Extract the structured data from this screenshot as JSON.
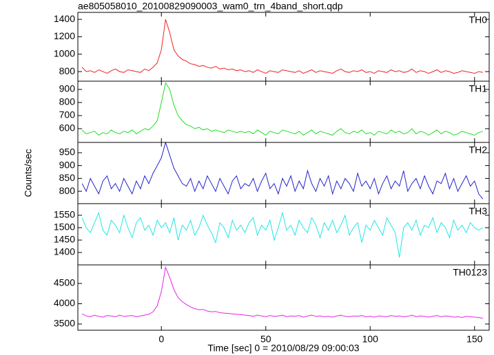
{
  "chart_data": [
    {
      "type": "line",
      "title": "ae805058010_20100829090003_wam0_trn_4band_short.qdp",
      "x": [
        -38,
        -36,
        -34,
        -32,
        -30,
        -28,
        -26,
        -24,
        -22,
        -20,
        -18,
        -16,
        -14,
        -12,
        -10,
        -8,
        -6,
        -4,
        -2,
        0,
        2,
        4,
        6,
        8,
        10,
        12,
        14,
        16,
        18,
        20,
        22,
        24,
        26,
        28,
        30,
        32,
        34,
        36,
        38,
        40,
        42,
        44,
        46,
        48,
        50,
        52,
        54,
        56,
        58,
        60,
        62,
        64,
        66,
        68,
        70,
        72,
        74,
        76,
        78,
        80,
        82,
        84,
        86,
        88,
        90,
        92,
        94,
        96,
        98,
        100,
        102,
        104,
        106,
        108,
        110,
        112,
        114,
        116,
        118,
        120,
        122,
        124,
        126,
        128,
        130,
        132,
        134,
        136,
        138,
        140,
        142,
        144,
        146,
        148,
        150,
        152,
        154
      ],
      "series": [
        {
          "name": "TH0",
          "color": "#ee2222",
          "values": [
            850,
            800,
            810,
            790,
            820,
            800,
            780,
            810,
            830,
            800,
            790,
            820,
            810,
            800,
            790,
            830,
            810,
            850,
            900,
            1050,
            1400,
            1250,
            1050,
            980,
            940,
            920,
            890,
            880,
            860,
            870,
            850,
            840,
            860,
            830,
            840,
            820,
            830,
            810,
            820,
            800,
            810,
            790,
            820,
            800,
            780,
            810,
            800,
            790,
            820,
            810,
            800,
            790,
            810,
            780,
            800,
            820,
            790,
            810,
            800,
            790,
            780,
            810,
            830,
            800,
            790,
            810,
            800,
            820,
            790,
            800,
            780,
            810,
            800,
            790,
            820,
            800,
            810,
            790,
            800,
            830,
            790,
            810,
            800,
            780,
            800,
            820,
            790,
            810,
            800,
            780,
            790,
            810,
            800,
            790,
            780,
            800,
            790
          ]
        }
      ],
      "xlim": [
        -40,
        157
      ],
      "ylim": [
        690,
        1480
      ],
      "yticks": [
        800,
        1000,
        1200,
        1400
      ]
    },
    {
      "type": "line",
      "x": [
        -38,
        -36,
        -34,
        -32,
        -30,
        -28,
        -26,
        -24,
        -22,
        -20,
        -18,
        -16,
        -14,
        -12,
        -10,
        -8,
        -6,
        -4,
        -2,
        0,
        2,
        4,
        6,
        8,
        10,
        12,
        14,
        16,
        18,
        20,
        22,
        24,
        26,
        28,
        30,
        32,
        34,
        36,
        38,
        40,
        42,
        44,
        46,
        48,
        50,
        52,
        54,
        56,
        58,
        60,
        62,
        64,
        66,
        68,
        70,
        72,
        74,
        76,
        78,
        80,
        82,
        84,
        86,
        88,
        90,
        92,
        94,
        96,
        98,
        100,
        102,
        104,
        106,
        108,
        110,
        112,
        114,
        116,
        118,
        120,
        122,
        124,
        126,
        128,
        130,
        132,
        134,
        136,
        138,
        140,
        142,
        144,
        146,
        148,
        150,
        152,
        154
      ],
      "series": [
        {
          "name": "TH1",
          "color": "#22dd22",
          "values": [
            590,
            560,
            570,
            580,
            550,
            570,
            560,
            590,
            570,
            560,
            580,
            570,
            590,
            560,
            580,
            600,
            590,
            620,
            660,
            800,
            950,
            900,
            780,
            700,
            660,
            630,
            620,
            600,
            610,
            590,
            600,
            580,
            590,
            580,
            570,
            590,
            580,
            570,
            580,
            570,
            580,
            560,
            590,
            570,
            550,
            580,
            570,
            560,
            590,
            580,
            570,
            560,
            580,
            550,
            570,
            590,
            560,
            580,
            570,
            560,
            550,
            580,
            600,
            570,
            560,
            580,
            570,
            590,
            560,
            570,
            550,
            580,
            570,
            560,
            590,
            570,
            580,
            560,
            570,
            600,
            560,
            580,
            570,
            550,
            570,
            590,
            560,
            580,
            570,
            550,
            560,
            580,
            570,
            560,
            550,
            570,
            580
          ]
        }
      ],
      "xlim": [
        -40,
        157
      ],
      "ylim": [
        495,
        963
      ],
      "yticks": [
        600,
        700,
        800,
        900
      ]
    },
    {
      "type": "line",
      "ylabel": "Counts/sec",
      "x": [
        -38,
        -36,
        -34,
        -32,
        -30,
        -28,
        -26,
        -24,
        -22,
        -20,
        -18,
        -16,
        -14,
        -12,
        -10,
        -8,
        -6,
        -4,
        -2,
        0,
        2,
        4,
        6,
        8,
        10,
        12,
        14,
        16,
        18,
        20,
        22,
        24,
        26,
        28,
        30,
        32,
        34,
        36,
        38,
        40,
        42,
        44,
        46,
        48,
        50,
        52,
        54,
        56,
        58,
        60,
        62,
        64,
        66,
        68,
        70,
        72,
        74,
        76,
        78,
        80,
        82,
        84,
        86,
        88,
        90,
        92,
        94,
        96,
        98,
        100,
        102,
        104,
        106,
        108,
        110,
        112,
        114,
        116,
        118,
        120,
        122,
        124,
        126,
        128,
        130,
        132,
        134,
        136,
        138,
        140,
        142,
        144,
        146,
        148,
        150,
        152,
        154
      ],
      "series": [
        {
          "name": "TH2",
          "color": "#2222cc",
          "values": [
            830,
            800,
            850,
            820,
            790,
            840,
            860,
            810,
            830,
            800,
            850,
            820,
            790,
            840,
            810,
            860,
            830,
            870,
            900,
            930,
            990,
            940,
            890,
            860,
            830,
            820,
            850,
            800,
            840,
            810,
            860,
            830,
            800,
            850,
            820,
            790,
            840,
            860,
            810,
            830,
            820,
            850,
            800,
            840,
            870,
            810,
            830,
            790,
            850,
            820,
            860,
            800,
            840,
            810,
            880,
            830,
            800,
            850,
            820,
            860,
            790,
            840,
            810,
            850,
            830,
            800,
            870,
            820,
            840,
            810,
            850,
            790,
            830,
            860,
            810,
            840,
            820,
            880,
            800,
            830,
            850,
            810,
            860,
            820,
            790,
            840,
            830,
            870,
            810,
            850,
            800,
            830,
            860,
            820,
            840,
            790,
            770
          ]
        }
      ],
      "xlim": [
        -40,
        157
      ],
      "ylim": [
        752,
        990
      ],
      "yticks": [
        800,
        850,
        900,
        950
      ]
    },
    {
      "type": "line",
      "x": [
        -38,
        -36,
        -34,
        -32,
        -30,
        -28,
        -26,
        -24,
        -22,
        -20,
        -18,
        -16,
        -14,
        -12,
        -10,
        -8,
        -6,
        -4,
        -2,
        0,
        2,
        4,
        6,
        8,
        10,
        12,
        14,
        16,
        18,
        20,
        22,
        24,
        26,
        28,
        30,
        32,
        34,
        36,
        38,
        40,
        42,
        44,
        46,
        48,
        50,
        52,
        54,
        56,
        58,
        60,
        62,
        64,
        66,
        68,
        70,
        72,
        74,
        76,
        78,
        80,
        82,
        84,
        86,
        88,
        90,
        92,
        94,
        96,
        98,
        100,
        102,
        104,
        106,
        108,
        110,
        112,
        114,
        116,
        118,
        120,
        122,
        124,
        126,
        128,
        130,
        132,
        134,
        136,
        138,
        140,
        142,
        144,
        146,
        148,
        150,
        152,
        154
      ],
      "series": [
        {
          "name": "TH3",
          "color": "#22e6e6",
          "values": [
            1540,
            1500,
            1480,
            1520,
            1560,
            1490,
            1470,
            1530,
            1510,
            1480,
            1550,
            1500,
            1460,
            1520,
            1540,
            1490,
            1510,
            1470,
            1530,
            1500,
            1520,
            1480,
            1540,
            1450,
            1510,
            1490,
            1530,
            1470,
            1500,
            1550,
            1510,
            1480,
            1440,
            1520,
            1500,
            1460,
            1530,
            1490,
            1510,
            1480,
            1520,
            1540,
            1470,
            1510,
            1490,
            1530,
            1450,
            1500,
            1560,
            1490,
            1510,
            1470,
            1530,
            1500,
            1480,
            1540,
            1510,
            1460,
            1520,
            1490,
            1530,
            1480,
            1510,
            1550,
            1470,
            1500,
            1520,
            1440,
            1510,
            1490,
            1530,
            1500,
            1470,
            1540,
            1510,
            1480,
            1380,
            1500,
            1520,
            1490,
            1530,
            1470,
            1510,
            1500,
            1540,
            1480,
            1520,
            1500,
            1460,
            1530,
            1490,
            1510,
            1480,
            1520,
            1500,
            1490,
            1500
          ]
        }
      ],
      "xlim": [
        -40,
        157
      ],
      "ylim": [
        1350,
        1597
      ],
      "yticks": [
        1400,
        1450,
        1500,
        1550
      ]
    },
    {
      "type": "line",
      "xlabel": "Time [sec] 0 = 2010/08/29 09:00:03",
      "x": [
        -38,
        -36,
        -34,
        -32,
        -30,
        -28,
        -26,
        -24,
        -22,
        -20,
        -18,
        -16,
        -14,
        -12,
        -10,
        -8,
        -6,
        -4,
        -2,
        0,
        2,
        4,
        6,
        8,
        10,
        12,
        14,
        16,
        18,
        20,
        22,
        24,
        26,
        28,
        30,
        32,
        34,
        36,
        38,
        40,
        42,
        44,
        46,
        48,
        50,
        52,
        54,
        56,
        58,
        60,
        62,
        64,
        66,
        68,
        70,
        72,
        74,
        76,
        78,
        80,
        82,
        84,
        86,
        88,
        90,
        92,
        94,
        96,
        98,
        100,
        102,
        104,
        106,
        108,
        110,
        112,
        114,
        116,
        118,
        120,
        122,
        124,
        126,
        128,
        130,
        132,
        134,
        136,
        138,
        140,
        142,
        144,
        146,
        148,
        150,
        152,
        154
      ],
      "series": [
        {
          "name": "TH0123",
          "color": "#e622e6",
          "values": [
            3750,
            3700,
            3680,
            3720,
            3690,
            3670,
            3710,
            3700,
            3680,
            3720,
            3690,
            3700,
            3710,
            3680,
            3700,
            3720,
            3740,
            3800,
            3950,
            4300,
            4900,
            4650,
            4350,
            4150,
            4050,
            3980,
            3920,
            3880,
            3850,
            3860,
            3820,
            3800,
            3810,
            3780,
            3770,
            3760,
            3750,
            3740,
            3730,
            3720,
            3710,
            3690,
            3720,
            3700,
            3680,
            3710,
            3690,
            3700,
            3720,
            3680,
            3700,
            3690,
            3710,
            3670,
            3700,
            3720,
            3690,
            3700,
            3680,
            3690,
            3670,
            3700,
            3720,
            3690,
            3680,
            3700,
            3690,
            3710,
            3680,
            3690,
            3670,
            3700,
            3690,
            3680,
            3710,
            3690,
            3700,
            3680,
            3690,
            3720,
            3680,
            3700,
            3690,
            3670,
            3690,
            3710,
            3680,
            3700,
            3690,
            3670,
            3680,
            3660,
            3690,
            3680,
            3670,
            3660,
            3640
          ]
        }
      ],
      "xlim": [
        -40,
        157
      ],
      "ylim": [
        3347,
        4958
      ],
      "yticks": [
        3500,
        4000,
        4500
      ],
      "xticks": [
        0,
        50,
        100,
        150
      ]
    }
  ]
}
